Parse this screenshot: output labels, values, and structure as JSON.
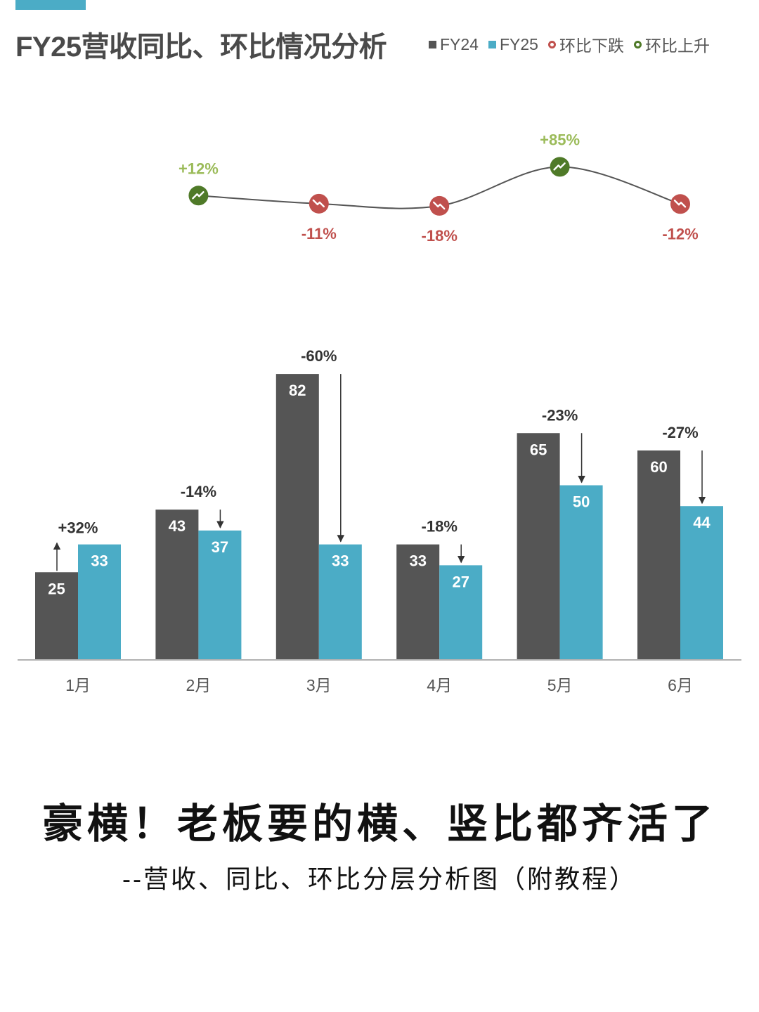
{
  "header": {
    "title": "FY25营收同比、环比情况分析"
  },
  "legend": [
    {
      "label": "FY24",
      "kind": "square",
      "color": "#555555"
    },
    {
      "label": "FY25",
      "kind": "square",
      "color": "#4bacc6"
    },
    {
      "label": "环比下跌",
      "kind": "circle",
      "color": "#c0504d"
    },
    {
      "label": "环比上升",
      "kind": "circle",
      "color": "#4f7a28"
    }
  ],
  "colors": {
    "fy24": "#555555",
    "fy25": "#4bacc6",
    "down": "#c0504d",
    "up": "#4f7a28",
    "up_text": "#9bbb59",
    "accent": "#4bacc6"
  },
  "chart_data": [
    {
      "type": "bar",
      "categories": [
        "1月",
        "2月",
        "3月",
        "4月",
        "5月",
        "6月"
      ],
      "series": [
        {
          "name": "FY24",
          "values": [
            25,
            43,
            82,
            33,
            65,
            60
          ]
        },
        {
          "name": "FY25",
          "values": [
            33,
            37,
            33,
            27,
            50,
            44
          ]
        }
      ],
      "yoy_labels": [
        "+32%",
        "-14%",
        "-60%",
        "-18%",
        "-23%",
        "-27%"
      ],
      "yoy_direction": [
        "up",
        "down",
        "down",
        "down",
        "down",
        "down"
      ],
      "ylim": [
        0,
        90
      ],
      "grid": false
    },
    {
      "type": "line",
      "x": [
        "2月",
        "3月",
        "4月",
        "5月",
        "6月"
      ],
      "values": [
        12,
        -11,
        -18,
        85,
        -12
      ],
      "labels": [
        "+12%",
        "-11%",
        "-18%",
        "+85%",
        "-12%"
      ],
      "directions": [
        "up",
        "down",
        "down",
        "up",
        "down"
      ]
    }
  ],
  "footer": {
    "headline": "豪横！老板要的横、竖比都齐活了",
    "subline": "--营收、同比、环比分层分析图（附教程）"
  }
}
